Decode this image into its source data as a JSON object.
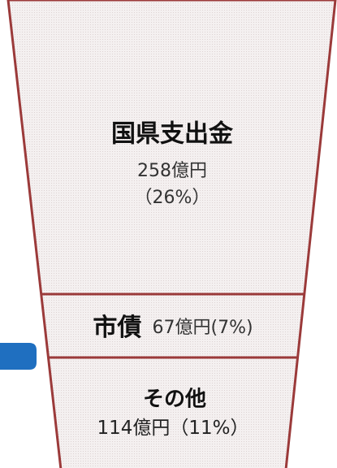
{
  "segments": [
    {
      "label": "国県支出金",
      "amount": "258億円",
      "share": "（26%）"
    },
    {
      "label": "市債",
      "amount": "67億円",
      "share": "(7%)"
    },
    {
      "label": "その他",
      "amount": "114億円",
      "share": "（11%）"
    }
  ]
}
